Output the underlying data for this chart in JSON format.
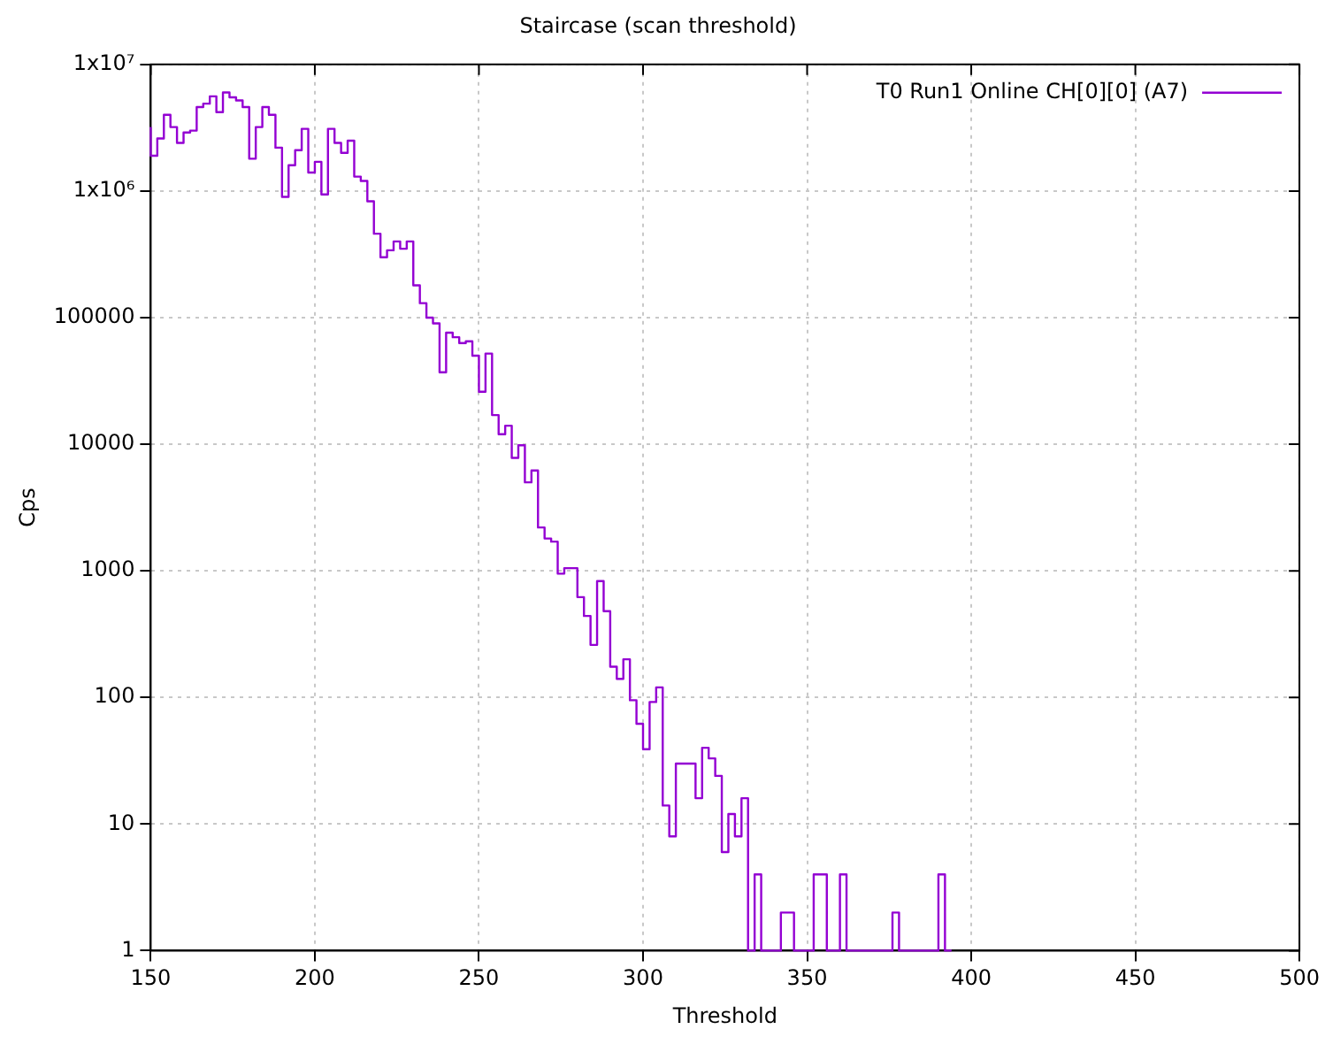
{
  "chart_data": {
    "type": "step",
    "title": "Staircase (scan threshold)",
    "xlabel": "Threshold",
    "ylabel": "Cps",
    "x": [
      150,
      152,
      154,
      156,
      158,
      160,
      162,
      164,
      166,
      168,
      170,
      172,
      174,
      176,
      178,
      180,
      182,
      184,
      186,
      188,
      190,
      192,
      194,
      196,
      198,
      200,
      202,
      204,
      206,
      208,
      210,
      212,
      214,
      216,
      218,
      220,
      222,
      224,
      226,
      228,
      230,
      232,
      234,
      236,
      238,
      240,
      242,
      244,
      246,
      248,
      250,
      252,
      254,
      256,
      258,
      260,
      262,
      264,
      266,
      268,
      270,
      272,
      274,
      276,
      278,
      280,
      282,
      284,
      286,
      288,
      290,
      292,
      294,
      296,
      298,
      300,
      302,
      304,
      306,
      308,
      310,
      312,
      314,
      316,
      318,
      320,
      322,
      324,
      326,
      328,
      330,
      332,
      334,
      336,
      338,
      340,
      342,
      344,
      346,
      348,
      350,
      352,
      354,
      356,
      358,
      360,
      362,
      364,
      366,
      368,
      370,
      372,
      374,
      376,
      378,
      380,
      382,
      384,
      386,
      388,
      390,
      392,
      394
    ],
    "series": [
      {
        "name": "T0 Run1 Online CH[0][0] (A7)",
        "color": "#9400d3",
        "values": [
          3200000,
          1900000,
          2600000,
          4000000,
          3200000,
          2400000,
          2900000,
          3000000,
          4600000,
          4900000,
          5600000,
          4200000,
          6000000,
          5500000,
          5200000,
          4600000,
          1800000,
          3200000,
          4600000,
          4000000,
          2200000,
          900000,
          1600000,
          2100000,
          3100000,
          1400000,
          1700000,
          940000,
          3100000,
          2400000,
          2000000,
          2500000,
          1300000,
          1200000,
          830000,
          460000,
          300000,
          340000,
          400000,
          350000,
          400000,
          180000,
          130000,
          100000,
          90000,
          37000,
          76000,
          70000,
          63000,
          65000,
          50000,
          26000,
          52000,
          17000,
          12000,
          14000,
          7800,
          9800,
          5000,
          6200,
          2200,
          1800,
          1700,
          950,
          1050,
          1050,
          620,
          440,
          260,
          830,
          480,
          175,
          140,
          200,
          95,
          62,
          39,
          92,
          120,
          14,
          8,
          30,
          30,
          30,
          16,
          40,
          33,
          24,
          6,
          12,
          8,
          16,
          1,
          4,
          1,
          1,
          1,
          2,
          2,
          1,
          1,
          1,
          4,
          4,
          1,
          1,
          4,
          1,
          1,
          1,
          1,
          1,
          1,
          1,
          2,
          1,
          1,
          1,
          1,
          1,
          1,
          4,
          1
        ]
      }
    ],
    "xlim": [
      150,
      500
    ],
    "xticks": [
      150,
      200,
      250,
      300,
      350,
      400,
      450,
      500
    ],
    "ylim": [
      1,
      10000000
    ],
    "log": "y",
    "yticks": [
      1,
      10,
      100,
      1000,
      10000,
      100000,
      {
        "value": 1000000,
        "label": "1x10⁶"
      },
      {
        "value": 10000000,
        "label": "1x10⁷"
      }
    ],
    "grid": true,
    "legend": "top right",
    "line_style": "solid",
    "marker": "none"
  }
}
